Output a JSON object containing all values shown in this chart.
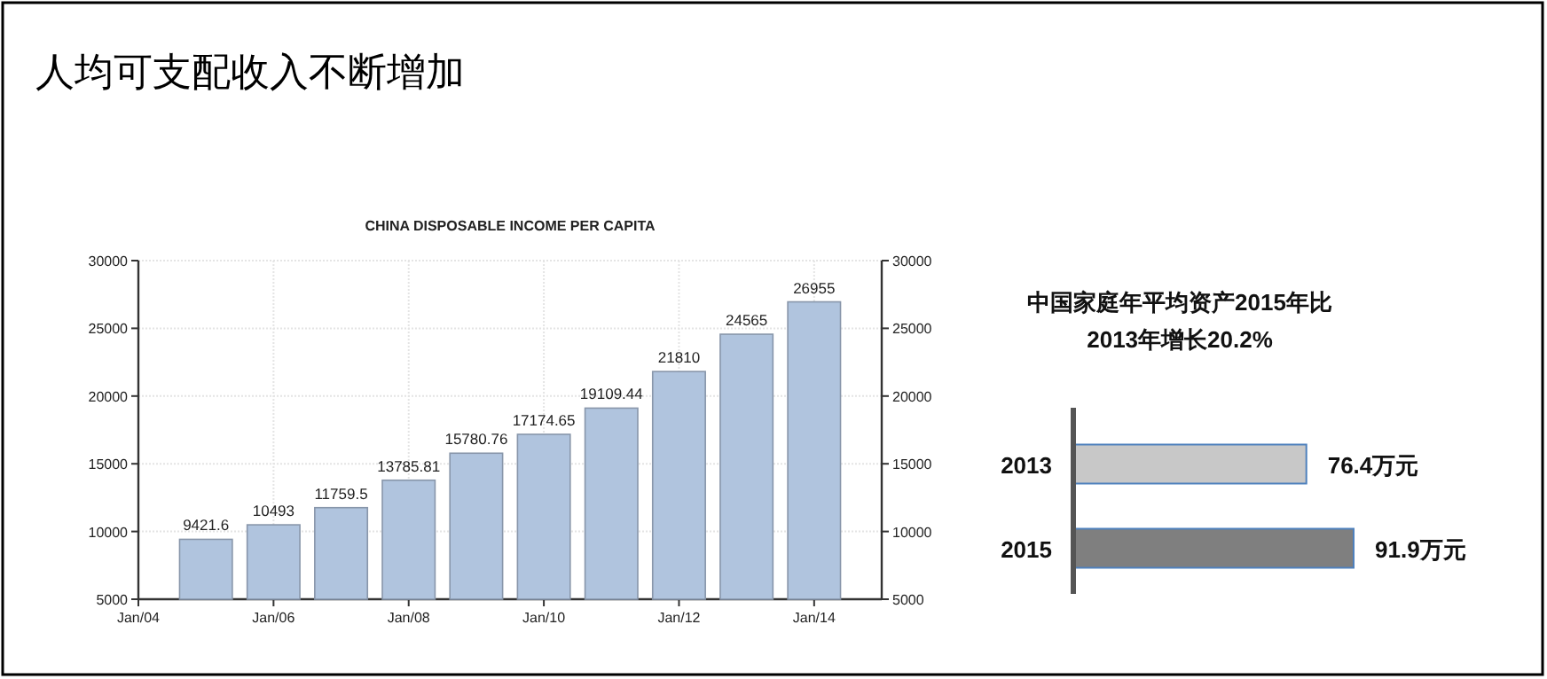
{
  "chart_data": [
    {
      "type": "bar",
      "title": "人均可支配收入不断增加",
      "subtitle": "CHINA DISPOSABLE INCOME PER CAPITA",
      "x": [
        "2005-01",
        "2006-01",
        "2007-01",
        "2008-01",
        "2009-01",
        "2010-01",
        "2011-01",
        "2012-01",
        "2013-01",
        "2014-01"
      ],
      "values": [
        9421.6,
        10493,
        11759.5,
        13785.81,
        15780.76,
        17174.65,
        19109.44,
        21810,
        24565,
        26955
      ],
      "color": "#b0c4de",
      "data_labels": true,
      "grid": true,
      "xlim": [
        "2004-01",
        "2015-01"
      ],
      "xticks": [
        {
          "value": "2004-01",
          "label": "Jan/04"
        },
        {
          "value": "2006-01",
          "label": "Jan/06"
        },
        {
          "value": "2008-01",
          "label": "Jan/08"
        },
        {
          "value": "2010-01",
          "label": "Jan/10"
        },
        {
          "value": "2012-01",
          "label": "Jan/12"
        },
        {
          "value": "2014-01",
          "label": "Jan/14"
        }
      ],
      "ylim": [
        5000,
        30000
      ],
      "yticks": [
        5000,
        10000,
        15000,
        20000,
        25000,
        30000
      ],
      "y2lim": [
        5000,
        30000
      ],
      "y2ticks": [
        5000,
        10000,
        15000,
        20000,
        25000,
        30000
      ]
    },
    {
      "type": "bar",
      "orientation": "horizontal",
      "title": "中国家庭年平均资产2015年比2013年增长20.2%",
      "categories": [
        "2013",
        "2015"
      ],
      "values": [
        76.4,
        91.9
      ],
      "colors": [
        "#c8c8c8",
        "#7f7f7f"
      ],
      "value_labels": [
        "76.4万元",
        "91.9万元"
      ]
    }
  ]
}
